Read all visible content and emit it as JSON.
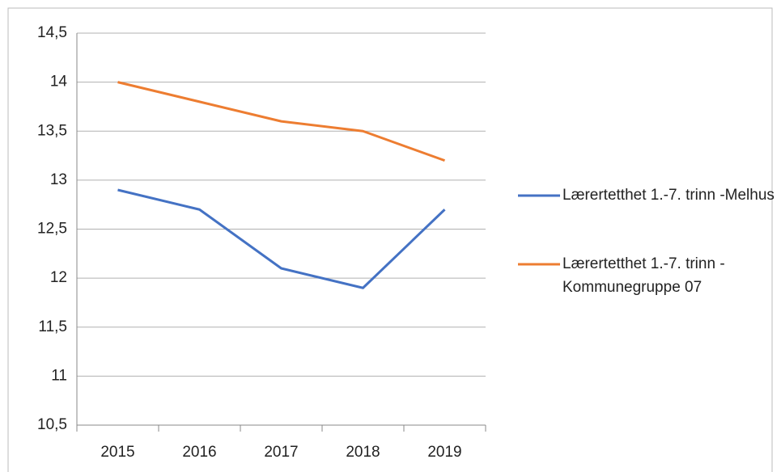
{
  "chart_data": {
    "type": "line",
    "categories": [
      "2015",
      "2016",
      "2017",
      "2018",
      "2019"
    ],
    "series": [
      {
        "name": "Lærertetthet 1.-7. trinn -Melhus",
        "color": "#4472c4",
        "values": [
          12.9,
          12.7,
          12.1,
          11.9,
          12.7
        ]
      },
      {
        "name": "Lærertetthet 1.-7. trinn - Kommunegruppe 07",
        "color": "#ed7d31",
        "values": [
          14.0,
          13.8,
          13.6,
          13.5,
          13.2
        ]
      }
    ],
    "ylim": [
      10.5,
      14.5
    ],
    "yticks": [
      {
        "value": 10.5,
        "label": "10,5"
      },
      11,
      {
        "value": 11.5,
        "label": "11,5"
      },
      12,
      {
        "value": 12.5,
        "label": "12,5"
      },
      13,
      {
        "value": 13.5,
        "label": "13,5"
      },
      14,
      {
        "value": 14.5,
        "label": "14,5"
      }
    ],
    "grid": true,
    "legend": "right"
  }
}
